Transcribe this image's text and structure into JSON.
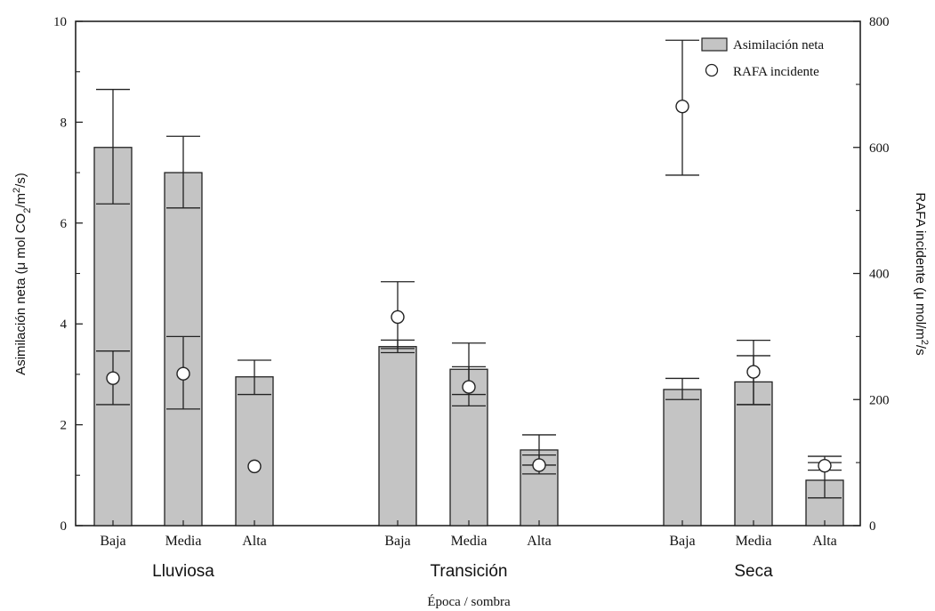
{
  "chart_data": {
    "type": "bar",
    "xlabel": "Época / sombra",
    "ylabel_left": {
      "main": "Asimilación neta (μ mol CO",
      "sub": "2",
      "mid": "/m",
      "sup": "2",
      "end": "/s)"
    },
    "ylabel_right": {
      "main": "RAFA incidente (μ mol/m",
      "sup": "2",
      "end": "/s"
    },
    "ylim_left": [
      0,
      10
    ],
    "yticks_left": [
      0,
      2,
      4,
      6,
      8,
      10
    ],
    "ylim_right": [
      0,
      800
    ],
    "yticks_right": [
      0,
      200,
      400,
      600,
      800
    ],
    "groups": [
      {
        "name": "Lluviosa",
        "categories": [
          "Baja",
          "Media",
          "Alta"
        ]
      },
      {
        "name": "Transición",
        "categories": [
          "Baja",
          "Media",
          "Alta"
        ]
      },
      {
        "name": "Seca",
        "categories": [
          "Baja",
          "Media",
          "Alta"
        ]
      }
    ],
    "series": [
      {
        "name": "Asimilación neta",
        "axis": "left",
        "kind": "bar",
        "values": [
          7.5,
          7.0,
          2.95,
          3.55,
          3.1,
          1.5,
          2.7,
          2.85,
          0.9
        ],
        "err_low": [
          6.38,
          6.3,
          2.6,
          3.43,
          2.6,
          1.2,
          2.5,
          2.4,
          0.55
        ],
        "err_high": [
          8.65,
          7.72,
          3.28,
          3.68,
          3.62,
          1.8,
          2.92,
          3.37,
          1.25
        ]
      },
      {
        "name": "RAFA incidente",
        "axis": "right",
        "kind": "point",
        "values": [
          234,
          241,
          94,
          331,
          220,
          96,
          665,
          244,
          95
        ],
        "err_low": [
          192,
          185,
          94,
          281,
          190,
          82,
          556,
          192,
          88
        ],
        "err_high": [
          277,
          300,
          94,
          387,
          252,
          112,
          770,
          294,
          110
        ]
      }
    ],
    "legend": {
      "position": "top-right"
    },
    "grid": false,
    "colors": {
      "bar_fill": "#c4c4c4",
      "stroke": "#222222",
      "point_fill": "#ffffff"
    }
  }
}
